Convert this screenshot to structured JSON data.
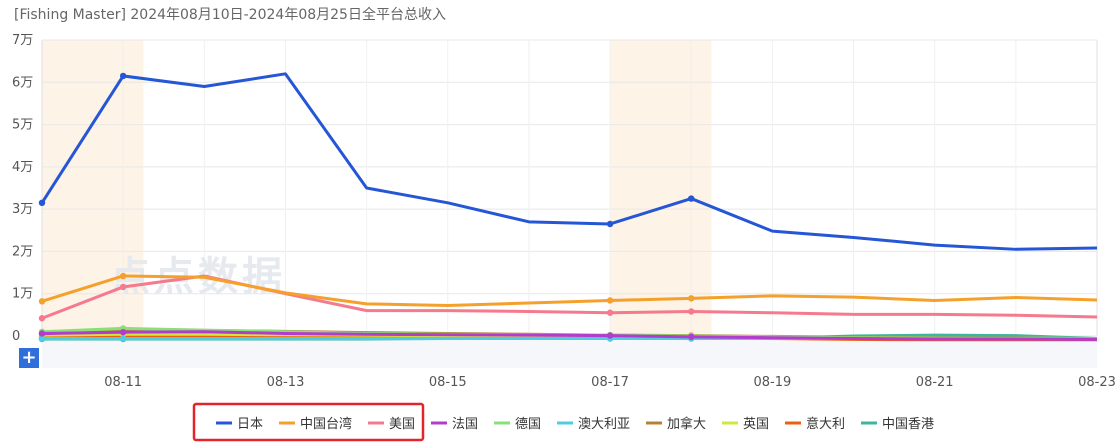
{
  "title": "[Fishing Master]  2024年08月10日-2024年08月25日全平台总收入",
  "zoom_button": "+",
  "watermark": "点点数据",
  "chart_data": {
    "type": "line",
    "title": "[Fishing Master]  2024年08月10日-2024年08月25日全平台总收入",
    "x": [
      "08-10",
      "08-11",
      "08-12",
      "08-13",
      "08-14",
      "08-15",
      "08-16",
      "08-17",
      "08-18",
      "08-19",
      "08-20",
      "08-21",
      "08-22",
      "08-23"
    ],
    "x_tick_labels": [
      "08-11",
      "08-13",
      "08-15",
      "08-17",
      "08-19",
      "08-21",
      "08-23"
    ],
    "y_tick_labels": [
      "0",
      "1万",
      "2万",
      "3万",
      "4万",
      "5万",
      "6万",
      "7万"
    ],
    "ylim": [
      0,
      70000
    ],
    "highlight_ranges": [
      [
        "08-10",
        "08-11"
      ],
      [
        "08-17",
        "08-18"
      ]
    ],
    "grid": true,
    "legend_position": "bottom",
    "series": [
      {
        "name": "日本",
        "color": "#2456d6",
        "values": [
          31500,
          61500,
          59000,
          62000,
          35000,
          31500,
          27000,
          26500,
          32500,
          24800,
          23300,
          21500,
          20500,
          20800
        ]
      },
      {
        "name": "中国台湾",
        "color": "#f5a02b",
        "values": [
          8200,
          14200,
          13900,
          10200,
          7600,
          7200,
          7800,
          8400,
          8900,
          9500,
          9200,
          8400,
          9100,
          8500
        ]
      },
      {
        "name": "美国",
        "color": "#f57a8e",
        "values": [
          4200,
          11600,
          14200,
          10000,
          6000,
          6000,
          5800,
          5500,
          5800,
          5500,
          5100,
          5100,
          4900,
          4500
        ]
      },
      {
        "name": "法国",
        "color": "#b33cce",
        "values": [
          600,
          900,
          1000,
          600,
          400,
          300,
          200,
          100,
          -200,
          -400,
          -600,
          -700,
          -700,
          -800
        ]
      },
      {
        "name": "德国",
        "color": "#8ae077",
        "values": [
          1000,
          1800,
          1400,
          1000,
          600,
          400,
          300,
          200,
          0,
          -200,
          -400,
          -500,
          -600,
          -700
        ]
      },
      {
        "name": "澳大利亚",
        "color": "#4ccde0",
        "values": [
          -600,
          -600,
          -600,
          -600,
          -600,
          -600,
          -600,
          -600,
          -600,
          -600,
          -600,
          -600,
          -600,
          -600
        ]
      },
      {
        "name": "加拿大",
        "color": "#b5813a",
        "values": [
          500,
          1400,
          1300,
          1100,
          800,
          600,
          400,
          200,
          100,
          -100,
          -300,
          -400,
          -500,
          -700
        ]
      },
      {
        "name": "英国",
        "color": "#cfe840",
        "values": [
          200,
          400,
          400,
          300,
          200,
          100,
          0,
          -100,
          -200,
          -300,
          -400,
          -500,
          -500,
          -600
        ]
      },
      {
        "name": "意大利",
        "color": "#ee5f10",
        "values": [
          -200,
          -100,
          0,
          -100,
          -200,
          -300,
          -400,
          -400,
          -500,
          -600,
          -800,
          -900,
          -900,
          -900
        ]
      },
      {
        "name": "中国香港",
        "color": "#3fb4a0",
        "values": [
          -700,
          -700,
          -700,
          -700,
          -700,
          -600,
          -600,
          -600,
          -600,
          -600,
          0,
          200,
          100,
          -600
        ]
      }
    ]
  },
  "legend_highlight": [
    "日本",
    "中国台湾",
    "美国"
  ]
}
